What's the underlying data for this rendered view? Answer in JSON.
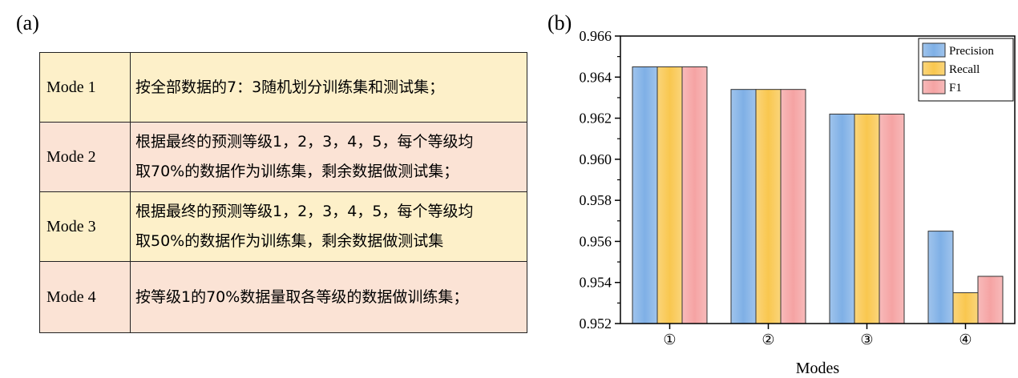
{
  "panel_a": {
    "label": "(a)",
    "rows": [
      {
        "mode": "Mode 1",
        "lines": [
          "按全部数据的7：3随机划分训练集和测试集；"
        ]
      },
      {
        "mode": "Mode 2",
        "lines": [
          "根据最终的预测等级1，2，3，4，5，每个等级均",
          "取70%的数据作为训练集，剩余数据做测试集；"
        ]
      },
      {
        "mode": "Mode 3",
        "lines": [
          "根据最终的预测等级1，2，3，4，5，每个等级均",
          "取50%的数据作为训练集，剩余数据做测试集"
        ]
      },
      {
        "mode": "Mode 4",
        "lines": [
          "按等级1的70%数据量取各等级的数据做训练集；"
        ]
      }
    ],
    "colors": {
      "yellow_row": "#fdf0c9",
      "pink_row": "#fbe3d5"
    }
  },
  "panel_b": {
    "label": "(b)"
  },
  "chart_data": {
    "type": "bar",
    "categories": [
      "①",
      "②",
      "③",
      "④"
    ],
    "series": [
      {
        "name": "Precision",
        "values": [
          0.9645,
          0.9634,
          0.9622,
          0.9565
        ],
        "color": "#7fb0e6"
      },
      {
        "name": "Recall",
        "values": [
          0.9645,
          0.9634,
          0.9622,
          0.9535
        ],
        "color": "#f9c74f"
      },
      {
        "name": "F1",
        "values": [
          0.9645,
          0.9634,
          0.9622,
          0.9543
        ],
        "color": "#f5a3a3"
      }
    ],
    "xlabel": "Modes",
    "ylabel": "",
    "ylim": [
      0.952,
      0.966
    ],
    "yticks": [
      "0.952",
      "0.954",
      "0.956",
      "0.958",
      "0.960",
      "0.962",
      "0.964",
      "0.966"
    ],
    "grid": false,
    "legend_position": "top-right"
  }
}
